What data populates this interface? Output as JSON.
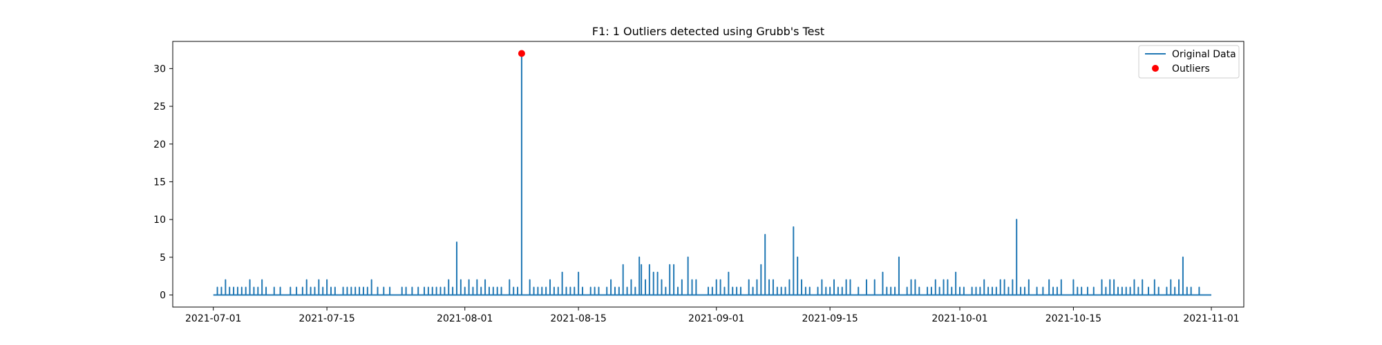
{
  "chart_data": {
    "type": "line",
    "title": "F1: 1 Outliers detected using Grubb's Test",
    "xlabel": "",
    "ylabel": "",
    "x_range": [
      "2021-06-26",
      "2021-11-05"
    ],
    "ylim": [
      -1.6,
      33.6
    ],
    "x_ticks": [
      "2021-07-01",
      "2021-07-15",
      "2021-08-01",
      "2021-08-15",
      "2021-09-01",
      "2021-09-15",
      "2021-10-01",
      "2021-10-15",
      "2021-11-01"
    ],
    "y_ticks": [
      0,
      5,
      10,
      15,
      20,
      25,
      30
    ],
    "grid": false,
    "legend_position": "top-right",
    "colors": {
      "line": "#1f77b4",
      "outlier": "#ff0000"
    },
    "series": [
      {
        "name": "Original Data",
        "kind": "line",
        "points": [
          [
            "2021-07-01T00:00",
            0
          ],
          [
            "2021-07-01T12:00",
            1
          ],
          [
            "2021-07-02T00:00",
            1
          ],
          [
            "2021-07-02T12:00",
            2
          ],
          [
            "2021-07-03T00:00",
            1
          ],
          [
            "2021-07-03T12:00",
            1
          ],
          [
            "2021-07-04T00:00",
            1
          ],
          [
            "2021-07-04T12:00",
            1
          ],
          [
            "2021-07-05T00:00",
            1
          ],
          [
            "2021-07-05T12:00",
            2
          ],
          [
            "2021-07-06T00:00",
            1
          ],
          [
            "2021-07-06T12:00",
            1
          ],
          [
            "2021-07-07T00:00",
            2
          ],
          [
            "2021-07-07T12:00",
            1
          ],
          [
            "2021-07-08T12:00",
            1
          ],
          [
            "2021-07-09T06:00",
            1
          ],
          [
            "2021-07-10T12:00",
            1
          ],
          [
            "2021-07-11T06:00",
            1
          ],
          [
            "2021-07-12T00:00",
            1
          ],
          [
            "2021-07-12T12:00",
            2
          ],
          [
            "2021-07-13T00:00",
            1
          ],
          [
            "2021-07-13T12:00",
            1
          ],
          [
            "2021-07-14T00:00",
            2
          ],
          [
            "2021-07-14T12:00",
            1
          ],
          [
            "2021-07-15T00:00",
            2
          ],
          [
            "2021-07-15T12:00",
            1
          ],
          [
            "2021-07-16T00:00",
            1
          ],
          [
            "2021-07-17T00:00",
            1
          ],
          [
            "2021-07-17T12:00",
            1
          ],
          [
            "2021-07-18T00:00",
            1
          ],
          [
            "2021-07-18T12:00",
            1
          ],
          [
            "2021-07-19T00:00",
            1
          ],
          [
            "2021-07-19T12:00",
            1
          ],
          [
            "2021-07-20T00:00",
            1
          ],
          [
            "2021-07-20T12:00",
            2
          ],
          [
            "2021-07-21T06:00",
            1
          ],
          [
            "2021-07-22T00:00",
            1
          ],
          [
            "2021-07-22T18:00",
            1
          ],
          [
            "2021-07-24T06:00",
            1
          ],
          [
            "2021-07-24T18:00",
            1
          ],
          [
            "2021-07-25T12:00",
            1
          ],
          [
            "2021-07-26T06:00",
            1
          ],
          [
            "2021-07-27T00:00",
            1
          ],
          [
            "2021-07-27T12:00",
            1
          ],
          [
            "2021-07-28T00:00",
            1
          ],
          [
            "2021-07-28T12:00",
            1
          ],
          [
            "2021-07-29T00:00",
            1
          ],
          [
            "2021-07-29T12:00",
            1
          ],
          [
            "2021-07-30T00:00",
            2
          ],
          [
            "2021-07-30T12:00",
            1
          ],
          [
            "2021-07-31T00:00",
            7
          ],
          [
            "2021-07-31T12:00",
            2
          ],
          [
            "2021-08-01T00:00",
            1
          ],
          [
            "2021-08-01T12:00",
            2
          ],
          [
            "2021-08-02T00:00",
            1
          ],
          [
            "2021-08-02T12:00",
            2
          ],
          [
            "2021-08-03T00:00",
            1
          ],
          [
            "2021-08-03T12:00",
            2
          ],
          [
            "2021-08-04T00:00",
            1
          ],
          [
            "2021-08-04T12:00",
            1
          ],
          [
            "2021-08-05T00:00",
            1
          ],
          [
            "2021-08-05T12:00",
            1
          ],
          [
            "2021-08-06T12:00",
            2
          ],
          [
            "2021-08-07T00:00",
            1
          ],
          [
            "2021-08-07T12:00",
            1
          ],
          [
            "2021-08-08T00:00",
            32
          ],
          [
            "2021-08-09T00:00",
            2
          ],
          [
            "2021-08-09T12:00",
            1
          ],
          [
            "2021-08-10T00:00",
            1
          ],
          [
            "2021-08-10T12:00",
            1
          ],
          [
            "2021-08-11T00:00",
            1
          ],
          [
            "2021-08-11T12:00",
            2
          ],
          [
            "2021-08-12T00:00",
            1
          ],
          [
            "2021-08-12T12:00",
            1
          ],
          [
            "2021-08-13T00:00",
            3
          ],
          [
            "2021-08-13T12:00",
            1
          ],
          [
            "2021-08-14T00:00",
            1
          ],
          [
            "2021-08-14T12:00",
            1
          ],
          [
            "2021-08-15T00:00",
            3
          ],
          [
            "2021-08-15T12:00",
            1
          ],
          [
            "2021-08-16T12:00",
            1
          ],
          [
            "2021-08-17T00:00",
            1
          ],
          [
            "2021-08-17T12:00",
            1
          ],
          [
            "2021-08-18T12:00",
            1
          ],
          [
            "2021-08-19T00:00",
            2
          ],
          [
            "2021-08-19T12:00",
            1
          ],
          [
            "2021-08-20T00:00",
            1
          ],
          [
            "2021-08-20T12:00",
            4
          ],
          [
            "2021-08-21T00:00",
            1
          ],
          [
            "2021-08-21T12:00",
            2
          ],
          [
            "2021-08-22T00:00",
            1
          ],
          [
            "2021-08-22T12:00",
            5
          ],
          [
            "2021-08-22T18:00",
            4
          ],
          [
            "2021-08-23T06:00",
            2
          ],
          [
            "2021-08-23T18:00",
            4
          ],
          [
            "2021-08-24T06:00",
            3
          ],
          [
            "2021-08-24T18:00",
            3
          ],
          [
            "2021-08-25T06:00",
            2
          ],
          [
            "2021-08-25T18:00",
            1
          ],
          [
            "2021-08-26T06:00",
            4
          ],
          [
            "2021-08-26T18:00",
            4
          ],
          [
            "2021-08-27T06:00",
            1
          ],
          [
            "2021-08-27T18:00",
            2
          ],
          [
            "2021-08-28T12:00",
            5
          ],
          [
            "2021-08-29T00:00",
            2
          ],
          [
            "2021-08-29T12:00",
            2
          ],
          [
            "2021-08-31T00:00",
            1
          ],
          [
            "2021-08-31T12:00",
            1
          ],
          [
            "2021-09-01T00:00",
            2
          ],
          [
            "2021-09-01T12:00",
            2
          ],
          [
            "2021-09-02T00:00",
            1
          ],
          [
            "2021-09-02T12:00",
            3
          ],
          [
            "2021-09-03T00:00",
            1
          ],
          [
            "2021-09-03T12:00",
            1
          ],
          [
            "2021-09-04T00:00",
            1
          ],
          [
            "2021-09-05T00:00",
            2
          ],
          [
            "2021-09-05T12:00",
            1
          ],
          [
            "2021-09-06T00:00",
            2
          ],
          [
            "2021-09-06T12:00",
            4
          ],
          [
            "2021-09-07T00:00",
            8
          ],
          [
            "2021-09-07T12:00",
            2
          ],
          [
            "2021-09-08T00:00",
            2
          ],
          [
            "2021-09-08T12:00",
            1
          ],
          [
            "2021-09-09T00:00",
            1
          ],
          [
            "2021-09-09T12:00",
            1
          ],
          [
            "2021-09-10T00:00",
            2
          ],
          [
            "2021-09-10T12:00",
            9
          ],
          [
            "2021-09-11T00:00",
            5
          ],
          [
            "2021-09-11T12:00",
            2
          ],
          [
            "2021-09-12T00:00",
            1
          ],
          [
            "2021-09-12T12:00",
            1
          ],
          [
            "2021-09-13T12:00",
            1
          ],
          [
            "2021-09-14T00:00",
            2
          ],
          [
            "2021-09-14T12:00",
            1
          ],
          [
            "2021-09-15T00:00",
            1
          ],
          [
            "2021-09-15T12:00",
            2
          ],
          [
            "2021-09-16T00:00",
            1
          ],
          [
            "2021-09-16T12:00",
            1
          ],
          [
            "2021-09-17T00:00",
            2
          ],
          [
            "2021-09-17T12:00",
            2
          ],
          [
            "2021-09-18T12:00",
            1
          ],
          [
            "2021-09-19T12:00",
            2
          ],
          [
            "2021-09-20T12:00",
            2
          ],
          [
            "2021-09-21T12:00",
            3
          ],
          [
            "2021-09-22T00:00",
            1
          ],
          [
            "2021-09-22T12:00",
            1
          ],
          [
            "2021-09-23T00:00",
            1
          ],
          [
            "2021-09-23T12:00",
            5
          ],
          [
            "2021-09-24T12:00",
            1
          ],
          [
            "2021-09-25T00:00",
            2
          ],
          [
            "2021-09-25T12:00",
            2
          ],
          [
            "2021-09-26T00:00",
            1
          ],
          [
            "2021-09-27T00:00",
            1
          ],
          [
            "2021-09-27T12:00",
            1
          ],
          [
            "2021-09-28T00:00",
            2
          ],
          [
            "2021-09-28T12:00",
            1
          ],
          [
            "2021-09-29T00:00",
            2
          ],
          [
            "2021-09-29T12:00",
            2
          ],
          [
            "2021-09-30T00:00",
            1
          ],
          [
            "2021-09-30T12:00",
            3
          ],
          [
            "2021-10-01T00:00",
            1
          ],
          [
            "2021-10-01T12:00",
            1
          ],
          [
            "2021-10-02T12:00",
            1
          ],
          [
            "2021-10-03T00:00",
            1
          ],
          [
            "2021-10-03T12:00",
            1
          ],
          [
            "2021-10-04T00:00",
            2
          ],
          [
            "2021-10-04T12:00",
            1
          ],
          [
            "2021-10-05T00:00",
            1
          ],
          [
            "2021-10-05T12:00",
            1
          ],
          [
            "2021-10-06T00:00",
            2
          ],
          [
            "2021-10-06T12:00",
            2
          ],
          [
            "2021-10-07T00:00",
            1
          ],
          [
            "2021-10-07T12:00",
            2
          ],
          [
            "2021-10-08T00:00",
            10
          ],
          [
            "2021-10-08T12:00",
            1
          ],
          [
            "2021-10-09T00:00",
            1
          ],
          [
            "2021-10-09T12:00",
            2
          ],
          [
            "2021-10-10T12:00",
            1
          ],
          [
            "2021-10-11T06:00",
            1
          ],
          [
            "2021-10-12T00:00",
            2
          ],
          [
            "2021-10-12T12:00",
            1
          ],
          [
            "2021-10-13T00:00",
            1
          ],
          [
            "2021-10-13T12:00",
            2
          ],
          [
            "2021-10-15T00:00",
            2
          ],
          [
            "2021-10-15T12:00",
            1
          ],
          [
            "2021-10-16T00:00",
            1
          ],
          [
            "2021-10-16T18:00",
            1
          ],
          [
            "2021-10-17T12:00",
            1
          ],
          [
            "2021-10-18T12:00",
            2
          ],
          [
            "2021-10-19T00:00",
            1
          ],
          [
            "2021-10-19T12:00",
            2
          ],
          [
            "2021-10-20T00:00",
            2
          ],
          [
            "2021-10-20T12:00",
            1
          ],
          [
            "2021-10-21T00:00",
            1
          ],
          [
            "2021-10-21T12:00",
            1
          ],
          [
            "2021-10-22T00:00",
            1
          ],
          [
            "2021-10-22T12:00",
            2
          ],
          [
            "2021-10-23T00:00",
            1
          ],
          [
            "2021-10-23T12:00",
            2
          ],
          [
            "2021-10-24T06:00",
            1
          ],
          [
            "2021-10-25T00:00",
            2
          ],
          [
            "2021-10-25T12:00",
            1
          ],
          [
            "2021-10-26T12:00",
            1
          ],
          [
            "2021-10-27T00:00",
            2
          ],
          [
            "2021-10-27T12:00",
            1
          ],
          [
            "2021-10-28T00:00",
            2
          ],
          [
            "2021-10-28T12:00",
            5
          ],
          [
            "2021-10-29T00:00",
            1
          ],
          [
            "2021-10-29T12:00",
            1
          ],
          [
            "2021-10-30T12:00",
            1
          ],
          [
            "2021-11-01T00:00",
            0
          ]
        ]
      },
      {
        "name": "Outliers",
        "kind": "scatter",
        "points": [
          [
            "2021-08-08T00:00",
            32
          ]
        ]
      }
    ]
  }
}
